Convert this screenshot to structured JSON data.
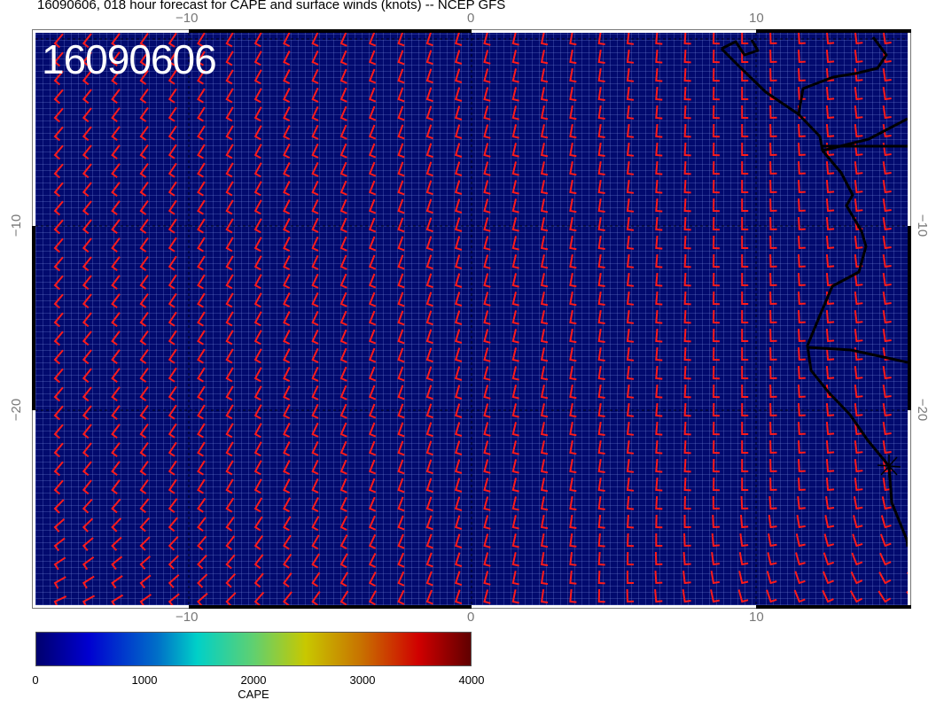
{
  "title": "16090606, 018 hour forecast for CAPE and surface winds (knots) -- NCEP GFS",
  "stamp": "16090606",
  "axes": {
    "lon_ticks": [
      "−10",
      "0",
      "10"
    ],
    "lat_ticks": [
      "−10",
      "−20"
    ]
  },
  "colorbar": {
    "label": "CAPE",
    "ticks": [
      "0",
      "1000",
      "2000",
      "3000",
      "4000"
    ],
    "range": [
      0,
      4000
    ],
    "colors": [
      "#00006e",
      "#0000d0",
      "#0070c8",
      "#00d0c8",
      "#60d070",
      "#c8c800",
      "#c87000",
      "#d00000",
      "#600000"
    ]
  },
  "colors": {
    "field": "#020a6e",
    "barbs": "#ff1a1a",
    "coast": "#000000"
  }
}
